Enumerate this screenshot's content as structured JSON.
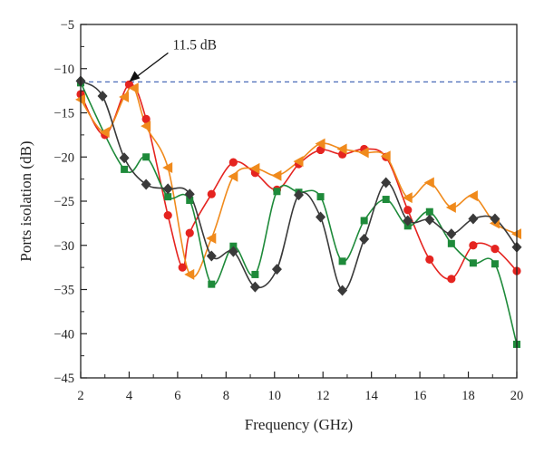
{
  "chart_data": {
    "type": "line",
    "xlabel": "Frequency (GHz)",
    "ylabel": "Ports isolation (dB)",
    "xlim": [
      2,
      20
    ],
    "ylim": [
      -45,
      -5
    ],
    "xticks": [
      "2",
      "4",
      "6",
      "8",
      "10",
      "12",
      "14",
      "16",
      "18",
      "20"
    ],
    "yticks": [
      "−45",
      "−40",
      "−35",
      "−30",
      "−25",
      "−20",
      "−15",
      "−10",
      "−5"
    ],
    "grid": false,
    "reference_line": {
      "y": -11.5,
      "style": "dashed",
      "color": "#4a6bb8"
    },
    "annotation": {
      "text": "11.5 dB",
      "target": [
        4.0,
        -11.5
      ]
    },
    "series": [
      {
        "color": "#e52420",
        "marker": "circle",
        "points": [
          [
            2,
            -12.9
          ],
          [
            3.0,
            -17.5
          ],
          [
            4.0,
            -11.8
          ],
          [
            4.7,
            -15.7
          ],
          [
            5.6,
            -26.6
          ],
          [
            6.2,
            -32.5
          ],
          [
            6.5,
            -28.6
          ],
          [
            7.4,
            -24.2
          ],
          [
            8.3,
            -20.6
          ],
          [
            9.2,
            -21.8
          ],
          [
            10.1,
            -23.7
          ],
          [
            11.0,
            -20.8
          ],
          [
            11.9,
            -19.2
          ],
          [
            12.8,
            -19.7
          ],
          [
            13.7,
            -19.1
          ],
          [
            14.6,
            -20.0
          ],
          [
            15.5,
            -26.0
          ],
          [
            16.4,
            -31.6
          ],
          [
            17.3,
            -33.8
          ],
          [
            18.2,
            -30.0
          ],
          [
            19.1,
            -30.4
          ],
          [
            20,
            -32.9
          ]
        ]
      },
      {
        "color": "#f08a1c",
        "marker": "triangle-left",
        "points": [
          [
            2,
            -13.5
          ],
          [
            3.0,
            -17.2
          ],
          [
            3.8,
            -13.2
          ],
          [
            4.2,
            -12.2
          ],
          [
            4.7,
            -16.5
          ],
          [
            5.6,
            -21.2
          ],
          [
            6.5,
            -33.3
          ],
          [
            7.4,
            -29.2
          ],
          [
            8.3,
            -22.2
          ],
          [
            9.2,
            -21.3
          ],
          [
            10.1,
            -22.1
          ],
          [
            11.0,
            -20.5
          ],
          [
            11.9,
            -18.5
          ],
          [
            12.8,
            -19.1
          ],
          [
            13.7,
            -19.5
          ],
          [
            14.6,
            -19.9
          ],
          [
            15.5,
            -24.6
          ],
          [
            16.4,
            -22.9
          ],
          [
            17.3,
            -25.7
          ],
          [
            18.2,
            -24.4
          ],
          [
            19.1,
            -27.5
          ],
          [
            20,
            -28.7
          ]
        ]
      },
      {
        "color": "#1e8a3a",
        "marker": "square",
        "points": [
          [
            2,
            -11.6
          ],
          [
            3.8,
            -21.4
          ],
          [
            4.7,
            -20.0
          ],
          [
            5.6,
            -24.5
          ],
          [
            6.5,
            -24.9
          ],
          [
            7.4,
            -34.4
          ],
          [
            8.3,
            -30.1
          ],
          [
            9.2,
            -33.3
          ],
          [
            10.1,
            -23.9
          ],
          [
            11.0,
            -24.0
          ],
          [
            11.9,
            -24.5
          ],
          [
            12.8,
            -31.8
          ],
          [
            13.7,
            -27.2
          ],
          [
            14.6,
            -24.8
          ],
          [
            15.5,
            -27.8
          ],
          [
            16.4,
            -26.2
          ],
          [
            17.3,
            -29.8
          ],
          [
            18.2,
            -32.0
          ],
          [
            19.1,
            -32.1
          ],
          [
            20,
            -41.2
          ]
        ]
      },
      {
        "color": "#3a3a3a",
        "marker": "diamond",
        "points": [
          [
            2,
            -11.4
          ],
          [
            2.9,
            -13.1
          ],
          [
            3.8,
            -20.1
          ],
          [
            4.7,
            -23.1
          ],
          [
            5.6,
            -23.6
          ],
          [
            6.5,
            -24.2
          ],
          [
            7.4,
            -31.2
          ],
          [
            8.3,
            -30.7
          ],
          [
            9.2,
            -34.7
          ],
          [
            10.1,
            -32.7
          ],
          [
            11.0,
            -24.3
          ],
          [
            11.9,
            -26.8
          ],
          [
            12.8,
            -35.1
          ],
          [
            13.7,
            -29.3
          ],
          [
            14.6,
            -22.9
          ],
          [
            15.5,
            -27.2
          ],
          [
            16.4,
            -27.1
          ],
          [
            17.3,
            -28.7
          ],
          [
            18.2,
            -27.0
          ],
          [
            19.1,
            -27.0
          ],
          [
            20,
            -30.2
          ]
        ]
      }
    ]
  }
}
